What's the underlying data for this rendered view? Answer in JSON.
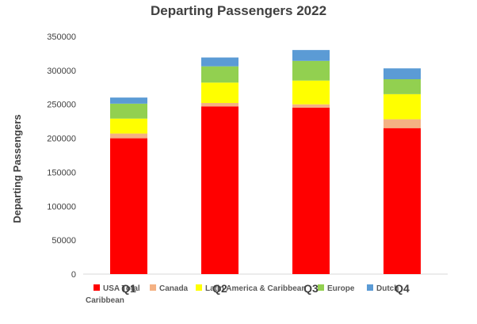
{
  "chart_data": {
    "type": "bar",
    "stacked": true,
    "title": "Departing Passengers 2022",
    "xlabel": "",
    "ylabel": "Departing Passengers",
    "categories": [
      "Q1",
      "Q2",
      "Q3",
      "Q4"
    ],
    "ylim": [
      0,
      350000
    ],
    "yticks": [
      0,
      50000,
      100000,
      150000,
      200000,
      250000,
      300000,
      350000
    ],
    "grid": false,
    "legend_position": "bottom",
    "series": [
      {
        "name": "USA Total",
        "color": "#ff0000",
        "values": [
          200000,
          247000,
          245000,
          215000
        ]
      },
      {
        "name": "Canada",
        "color": "#f4b183",
        "values": [
          7000,
          5000,
          5000,
          13000
        ]
      },
      {
        "name": "Latin America & Caribbean",
        "color": "#ffff00",
        "values": [
          22000,
          30000,
          35000,
          37000
        ]
      },
      {
        "name": "Europe",
        "color": "#92d050",
        "values": [
          22000,
          24000,
          29000,
          22000
        ]
      },
      {
        "name": "Dutch Caribbean",
        "color": "#5b9bd5",
        "values": [
          9000,
          13000,
          16000,
          16000
        ]
      }
    ]
  }
}
